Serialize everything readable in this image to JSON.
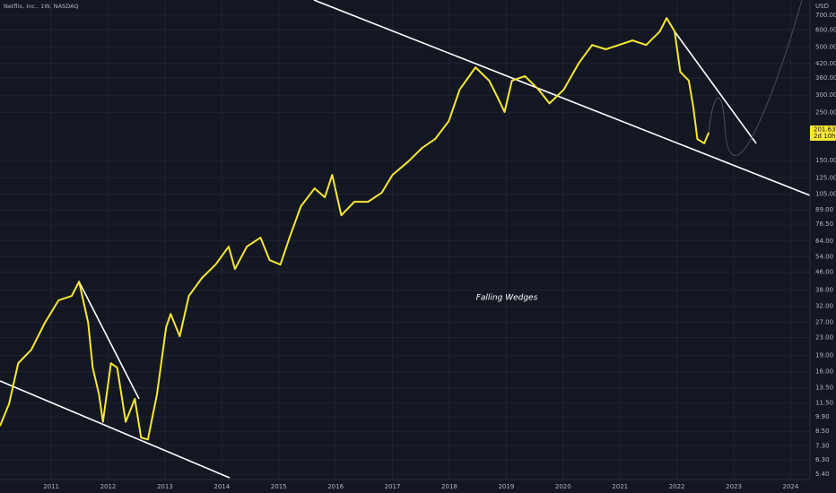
{
  "chart_data": {
    "type": "line",
    "title": "Netflix, Inc., 1W, NASDAQ",
    "currency": "USD",
    "annotation": "Falling Wedges",
    "color": "#f7e733",
    "log_scale": true,
    "grid": true,
    "last_price": {
      "value": 201.63,
      "label": "201.63"
    },
    "countdown": "2d 10h",
    "x": [
      2010.1,
      2010.26,
      2010.42,
      2010.65,
      2010.89,
      2011.13,
      2011.36,
      2011.49,
      2011.65,
      2011.73,
      2011.84,
      2011.91,
      2012.05,
      2012.16,
      2012.31,
      2012.47,
      2012.58,
      2012.7,
      2012.86,
      2013.02,
      2013.1,
      2013.26,
      2013.42,
      2013.65,
      2013.89,
      2014.12,
      2014.23,
      2014.44,
      2014.68,
      2014.84,
      2015.03,
      2015.19,
      2015.39,
      2015.63,
      2015.81,
      2015.94,
      2016.1,
      2016.33,
      2016.57,
      2016.81,
      2017.0,
      2017.28,
      2017.52,
      2017.75,
      2017.99,
      2018.18,
      2018.46,
      2018.7,
      2018.86,
      2018.97,
      2019.1,
      2019.33,
      2019.57,
      2019.76,
      2020.01,
      2020.28,
      2020.51,
      2020.75,
      2020.98,
      2021.22,
      2021.46,
      2021.7,
      2021.82,
      2021.96,
      2022.06,
      2022.21,
      2022.29,
      2022.36,
      2022.48,
      2022.56
    ],
    "values": [
      9.0,
      11.4,
      17.5,
      20.2,
      26.9,
      34.1,
      35.7,
      41.6,
      26.9,
      16.7,
      12.6,
      9.4,
      17.5,
      16.7,
      9.4,
      12.0,
      7.96,
      7.8,
      12.6,
      25.6,
      29.5,
      23.3,
      35.7,
      43.2,
      49.8,
      60.3,
      47.5,
      60.3,
      66.3,
      52.2,
      49.8,
      66.3,
      92.4,
      111.7,
      101.6,
      128.9,
      84.0,
      96.9,
      96.9,
      106.6,
      128.9,
      148.7,
      171.4,
      188.5,
      228,
      318,
      403,
      350,
      289,
      251,
      350,
      367,
      318,
      275,
      318,
      423,
      511,
      488,
      511,
      536,
      511,
      590,
      680,
      590,
      384,
      350,
      263,
      188.5,
      180,
      202
    ],
    "xlim": [
      2010.1,
      2024.34
    ],
    "xticks": [
      2011,
      2012,
      2013,
      2014,
      2015,
      2016,
      2017,
      2018,
      2019,
      2020,
      2021,
      2022,
      2023,
      2024
    ],
    "ylim": [
      5.1,
      823
    ],
    "yticks": [
      {
        "value": 5.4,
        "label": "5.40"
      },
      {
        "value": 6.3,
        "label": "6.30"
      },
      {
        "value": 7.3,
        "label": "7.30"
      },
      {
        "value": 8.5,
        "label": "8.50"
      },
      {
        "value": 9.9,
        "label": "9.90"
      },
      {
        "value": 11.5,
        "label": "11.50"
      },
      {
        "value": 13.5,
        "label": "13.50"
      },
      {
        "value": 16,
        "label": "16.00"
      },
      {
        "value": 19,
        "label": "19.00"
      },
      {
        "value": 23,
        "label": "23.00"
      },
      {
        "value": 27,
        "label": "27.00"
      },
      {
        "value": 32,
        "label": "32.00"
      },
      {
        "value": 38,
        "label": "38.00"
      },
      {
        "value": 46,
        "label": "46.00"
      },
      {
        "value": 54,
        "label": "54.00"
      },
      {
        "value": 64,
        "label": "64.00"
      },
      {
        "value": 76.5,
        "label": "76.50"
      },
      {
        "value": 89,
        "label": "89.00"
      },
      {
        "value": 105,
        "label": "105.00"
      },
      {
        "value": 125,
        "label": "125.00"
      },
      {
        "value": 150,
        "label": "150.00"
      },
      {
        "value": 250,
        "label": "250.00"
      },
      {
        "value": 300,
        "label": "300.00"
      },
      {
        "value": 360,
        "label": "360.00"
      },
      {
        "value": 420,
        "label": "420.00"
      },
      {
        "value": 500,
        "label": "500.00"
      },
      {
        "value": 600,
        "label": "600.00"
      },
      {
        "value": 700,
        "label": "700.00"
      }
    ]
  }
}
